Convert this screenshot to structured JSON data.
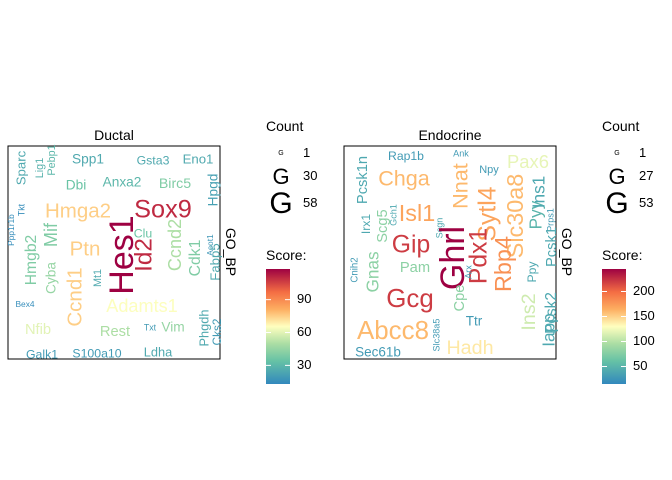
{
  "chart_data": [
    {
      "type": "wordcloud",
      "title": "Ductal",
      "side_label": "GO_BP",
      "legend": {
        "count_title": "Count",
        "count_glyph": "G",
        "count_values": [
          1,
          30,
          58
        ],
        "score_title": "Score:",
        "score_ticks": [
          30,
          60,
          90
        ],
        "score_range": [
          13,
          118
        ]
      },
      "words": [
        {
          "text": "Sparc",
          "count": 15,
          "score": 25
        },
        {
          "text": "Lig1",
          "count": 10,
          "score": 28
        },
        {
          "text": "Pebp1",
          "count": 10,
          "score": 30
        },
        {
          "text": "Spp1",
          "count": 16,
          "score": 25
        },
        {
          "text": "Gsta3",
          "count": 13,
          "score": 25
        },
        {
          "text": "Eno1",
          "count": 15,
          "score": 25
        },
        {
          "text": "Tkt",
          "count": 6,
          "score": 15
        },
        {
          "text": "Dbi",
          "count": 16,
          "score": 35
        },
        {
          "text": "Anxa2",
          "count": 16,
          "score": 30
        },
        {
          "text": "Birc5",
          "count": 17,
          "score": 40
        },
        {
          "text": "Hpgd",
          "count": 16,
          "score": 22
        },
        {
          "text": "Mif",
          "count": 25,
          "score": 40
        },
        {
          "text": "Hmga2",
          "count": 30,
          "score": 75
        },
        {
          "text": "Sox9",
          "count": 40,
          "score": 110
        },
        {
          "text": "Ppp1r1b",
          "count": 5,
          "score": 15
        },
        {
          "text": "Clu",
          "count": 13,
          "score": 35
        },
        {
          "text": "Hmgb2",
          "count": 20,
          "score": 40
        },
        {
          "text": "Ptn",
          "count": 30,
          "score": 75
        },
        {
          "text": "Ccnd2",
          "count": 25,
          "score": 50
        },
        {
          "text": "Acot1",
          "count": 5,
          "score": 18
        },
        {
          "text": "Cyba",
          "count": 16,
          "score": 45
        },
        {
          "text": "Hes1",
          "count": 58,
          "score": 118
        },
        {
          "text": "Id2",
          "count": 38,
          "score": 110
        },
        {
          "text": "Cdk1",
          "count": 20,
          "score": 40
        },
        {
          "text": "Fabp5",
          "count": 15,
          "score": 25
        },
        {
          "text": "Ccnd1",
          "count": 30,
          "score": 75
        },
        {
          "text": "Mt1",
          "count": 10,
          "score": 25
        },
        {
          "text": "Bex4",
          "count": 5,
          "score": 15
        },
        {
          "text": "Adamts1",
          "count": 25,
          "score": 65
        },
        {
          "text": "Nfib",
          "count": 18,
          "score": 60
        },
        {
          "text": "Rest",
          "count": 18,
          "score": 50
        },
        {
          "text": "Txt",
          "count": 6,
          "score": 20
        },
        {
          "text": "Vim",
          "count": 16,
          "score": 45
        },
        {
          "text": "Phgdh",
          "count": 14,
          "score": 25
        },
        {
          "text": "Cks2",
          "count": 12,
          "score": 20
        },
        {
          "text": "Galk1",
          "count": 13,
          "score": 20
        },
        {
          "text": "S100a10",
          "count": 13,
          "score": 20
        },
        {
          "text": "Ldha",
          "count": 14,
          "score": 25
        }
      ]
    },
    {
      "type": "wordcloud",
      "title": "Endocrine",
      "side_label": "GO_BP",
      "legend": {
        "count_title": "Count",
        "count_glyph": "G",
        "count_values": [
          1,
          27,
          53
        ],
        "score_title": "Score:",
        "score_ticks": [
          50,
          100,
          150,
          200
        ],
        "score_range": [
          15,
          245
        ]
      },
      "words": [
        {
          "text": "Rap1b",
          "count": 10,
          "score": 30
        },
        {
          "text": "Ank",
          "count": 5,
          "score": 30
        },
        {
          "text": "Npy",
          "count": 8,
          "score": 30
        },
        {
          "text": "Pax6",
          "count": 20,
          "score": 120
        },
        {
          "text": "Pcsk1n",
          "count": 14,
          "score": 40
        },
        {
          "text": "Chga",
          "count": 25,
          "score": 160
        },
        {
          "text": "Nnat",
          "count": 25,
          "score": 160
        },
        {
          "text": "Slc30a8",
          "count": 28,
          "score": 160
        },
        {
          "text": "Isl1",
          "count": 28,
          "score": 170
        },
        {
          "text": "Sytl4",
          "count": 30,
          "score": 170
        },
        {
          "text": "Pyy",
          "count": 18,
          "score": 50
        },
        {
          "text": "Ins1",
          "count": 18,
          "score": 40
        },
        {
          "text": "Irx1",
          "count": 10,
          "score": 40
        },
        {
          "text": "Scg5",
          "count": 14,
          "score": 80
        },
        {
          "text": "Gch1",
          "count": 5,
          "score": 40
        },
        {
          "text": "Scgn",
          "count": 5,
          "score": 40
        },
        {
          "text": "Prps1",
          "count": 5,
          "score": 30
        },
        {
          "text": "Gip",
          "count": 30,
          "score": 220
        },
        {
          "text": "Ghrl",
          "count": 45,
          "score": 245
        },
        {
          "text": "Pdx1",
          "count": 30,
          "score": 220
        },
        {
          "text": "Rbp4",
          "count": 28,
          "score": 180
        },
        {
          "text": "Pcsk1",
          "count": 14,
          "score": 40
        },
        {
          "text": "Cnih2",
          "count": 6,
          "score": 30
        },
        {
          "text": "Gnas",
          "count": 18,
          "score": 80
        },
        {
          "text": "Pam",
          "count": 14,
          "score": 80
        },
        {
          "text": "Gcg",
          "count": 32,
          "score": 220
        },
        {
          "text": "Cpe",
          "count": 14,
          "score": 80
        },
        {
          "text": "Ppy",
          "count": 10,
          "score": 40
        },
        {
          "text": "Arx",
          "count": 5,
          "score": 30
        },
        {
          "text": "Ttr",
          "count": 12,
          "score": 30
        },
        {
          "text": "Ins2",
          "count": 22,
          "score": 110
        },
        {
          "text": "Pcsk2",
          "count": 15,
          "score": 40
        },
        {
          "text": "Iapp",
          "count": 18,
          "score": 40
        },
        {
          "text": "Abcc8",
          "count": 32,
          "score": 160
        },
        {
          "text": "Slc38a5",
          "count": 5,
          "score": 30
        },
        {
          "text": "Hadh",
          "count": 22,
          "score": 140
        },
        {
          "text": "Sec61b",
          "count": 12,
          "score": 30
        }
      ]
    }
  ]
}
